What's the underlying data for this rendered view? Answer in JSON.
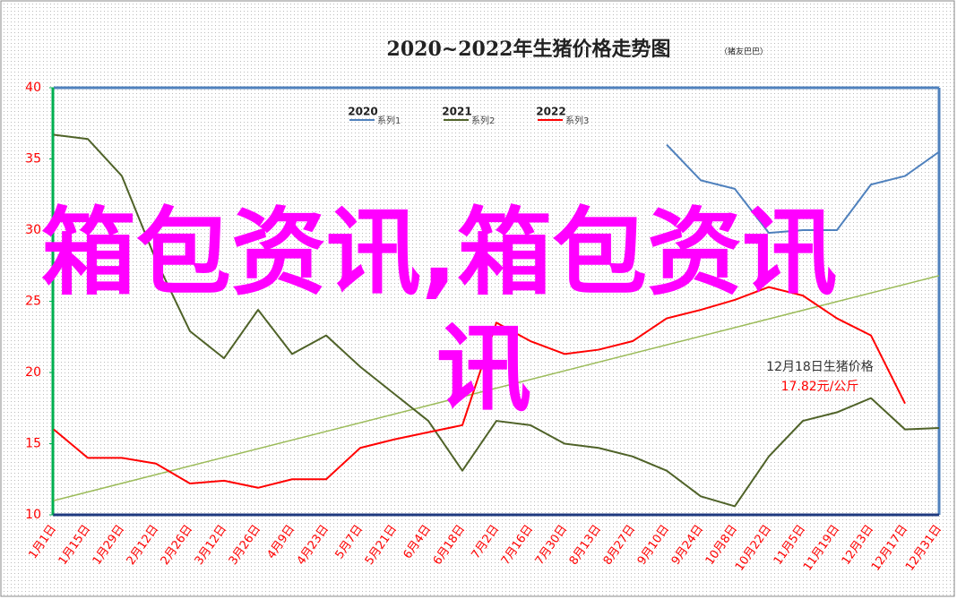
{
  "chart_data": {
    "type": "line",
    "title": "2020~2022年生猪价格走势图",
    "subtitle": "（猪友巴巴）",
    "categories": [
      "1月1日",
      "1月15日",
      "1月29日",
      "2月12日",
      "2月26日",
      "3月12日",
      "3月26日",
      "4月9日",
      "4月23日",
      "5月7日",
      "5月21日",
      "6月4日",
      "6月18日",
      "7月2日",
      "7月16日",
      "7月30日",
      "8月13日",
      "8月27日",
      "9月10日",
      "9月24日",
      "10月8日",
      "10月22日",
      "11月5日",
      "11月19日",
      "12月3日",
      "12月17日",
      "12月31日"
    ],
    "series": [
      {
        "name": "系列1",
        "label": "2020",
        "color": "#4f81bd",
        "values": [
          null,
          null,
          null,
          null,
          null,
          null,
          null,
          null,
          null,
          null,
          null,
          null,
          null,
          null,
          null,
          null,
          null,
          null,
          36.0,
          33.5,
          32.9,
          29.8,
          30,
          30,
          33.2,
          33.8,
          35.5
        ]
      },
      {
        "name": "系列2",
        "label": "2021",
        "color": "#4f6228",
        "values": [
          36.7,
          36.4,
          33.8,
          27.9,
          22.9,
          21,
          24.4,
          21.3,
          22.6,
          20.4,
          18.5,
          16.6,
          13.1,
          16.6,
          16.3,
          15,
          14.7,
          14.1,
          13.1,
          11.3,
          10.6,
          14.1,
          16.6,
          17.2,
          18.2,
          16,
          16.1
        ]
      },
      {
        "name": "系列3",
        "label": "2022",
        "color": "#ff0000",
        "values": [
          16,
          14,
          14,
          13.6,
          12.2,
          12.4,
          11.9,
          12.5,
          12.5,
          14.7,
          15.3,
          15.8,
          16.3,
          23.5,
          22.2,
          21.3,
          21.6,
          22.2,
          23.8,
          24.4,
          25.1,
          26,
          25.4,
          23.8,
          22.6,
          17.82,
          null
        ]
      }
    ],
    "trend": {
      "color": "#9bbb59",
      "values": [
        11,
        26.8
      ]
    },
    "annotation": [
      "12月18日生猪价格",
      "17.82元/公斤"
    ],
    "watermark": [
      "箱包资讯,箱包资讯",
      "讯"
    ],
    "ylim": [
      10,
      40
    ],
    "yticks": [
      10,
      15,
      20,
      25,
      30,
      35,
      40
    ]
  }
}
